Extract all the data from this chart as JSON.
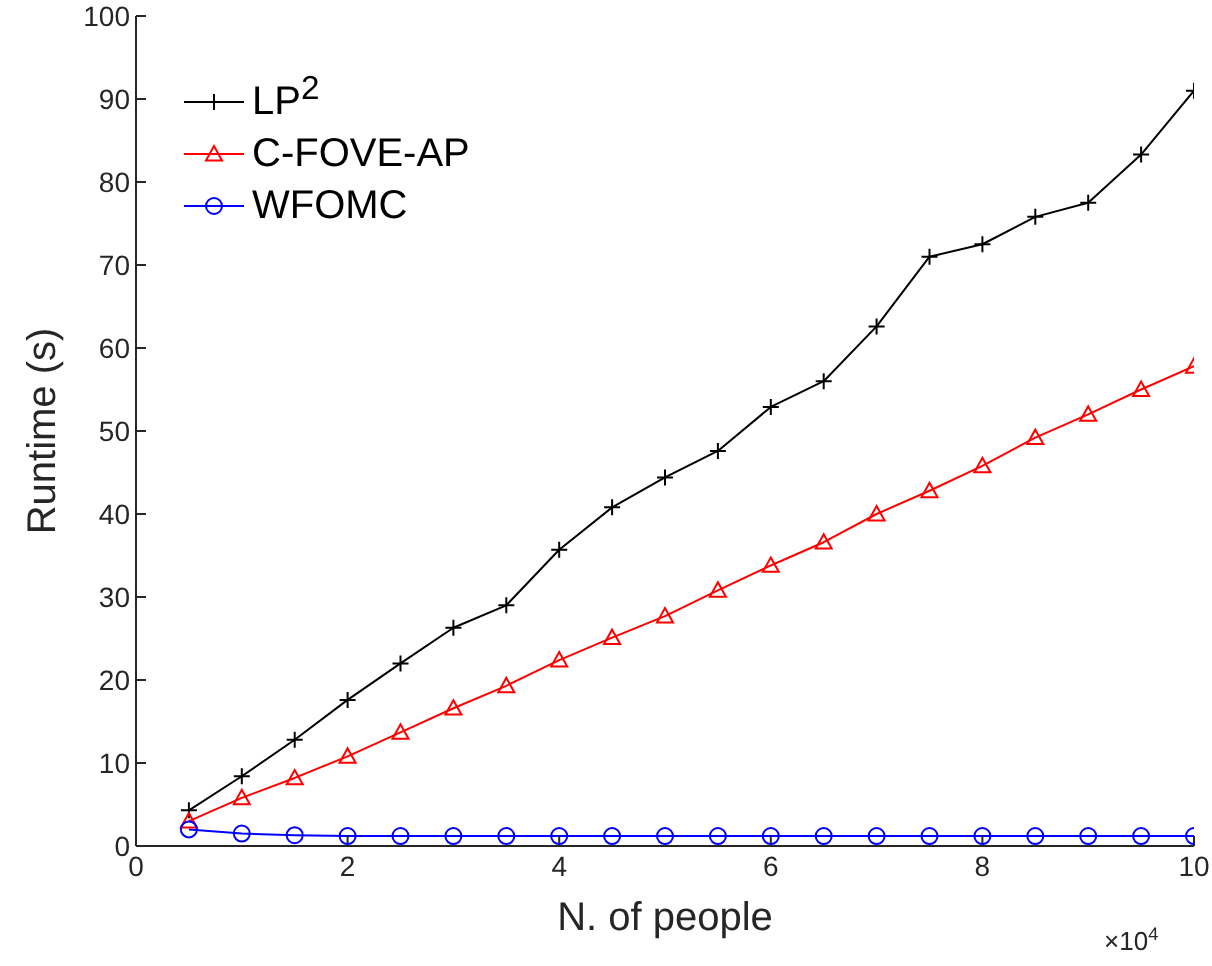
{
  "chart_data": {
    "type": "line",
    "xlabel": "N. of people",
    "ylabel": "Runtime (s)",
    "x": [
      0.5,
      1,
      1.5,
      2,
      2.5,
      3,
      3.5,
      4,
      4.5,
      5,
      5.5,
      6,
      6.5,
      7,
      7.5,
      8,
      8.5,
      9,
      9.5,
      10
    ],
    "series": [
      {
        "name": "LP$^{2}$",
        "color": "#000000",
        "marker": "cross",
        "values": [
          4.3,
          8.4,
          12.8,
          17.6,
          22,
          26.3,
          29,
          35.7,
          40.8,
          44.4,
          47.6,
          52.9,
          56,
          62.6,
          71,
          72.5,
          75.8,
          77.5,
          83.3,
          91
        ]
      },
      {
        "name": "C-FOVE-AP",
        "color": "#ff0000",
        "marker": "triangle",
        "values": [
          3,
          5.8,
          8.2,
          10.8,
          13.7,
          16.6,
          19.3,
          22.4,
          25.1,
          27.7,
          30.8,
          33.8,
          36.6,
          40,
          42.8,
          45.8,
          49.2,
          52,
          55,
          57.8
        ]
      },
      {
        "name": "WFOMC",
        "color": "#0000ff",
        "marker": "circle",
        "values": [
          2,
          1.5,
          1.3,
          1.2,
          1.2,
          1.2,
          1.2,
          1.2,
          1.2,
          1.2,
          1.2,
          1.2,
          1.2,
          1.2,
          1.2,
          1.2,
          1.2,
          1.2,
          1.2,
          1.2
        ]
      }
    ],
    "xlim": [
      0,
      10
    ],
    "xticks": [
      0,
      2,
      4,
      6,
      8,
      10
    ],
    "ylim": [
      0,
      100
    ],
    "yticks": [
      0,
      10,
      20,
      30,
      40,
      50,
      60,
      70,
      80,
      90,
      100
    ],
    "annotations": [
      "×10$^{4}$"
    ],
    "legend": "top left",
    "line_style": "solid"
  }
}
